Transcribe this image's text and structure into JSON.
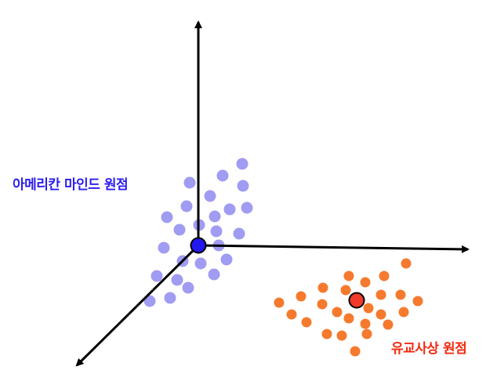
{
  "labels": {
    "american_origin": "아메리칸 마인드 원점",
    "confucian_origin": "유교사상 원점"
  },
  "colors": {
    "american_label": "#2b1cf0",
    "american_center": "#2418f0",
    "american_cluster": "#a09cf2",
    "confucian_label": "#f22a10",
    "confucian_center": "#f23a2a",
    "confucian_cluster": "#f57a2e",
    "axis": "#000000",
    "label_outline": "#ffffff"
  },
  "icons": {
    "axis_arrowhead": "triangle-arrowhead"
  }
}
